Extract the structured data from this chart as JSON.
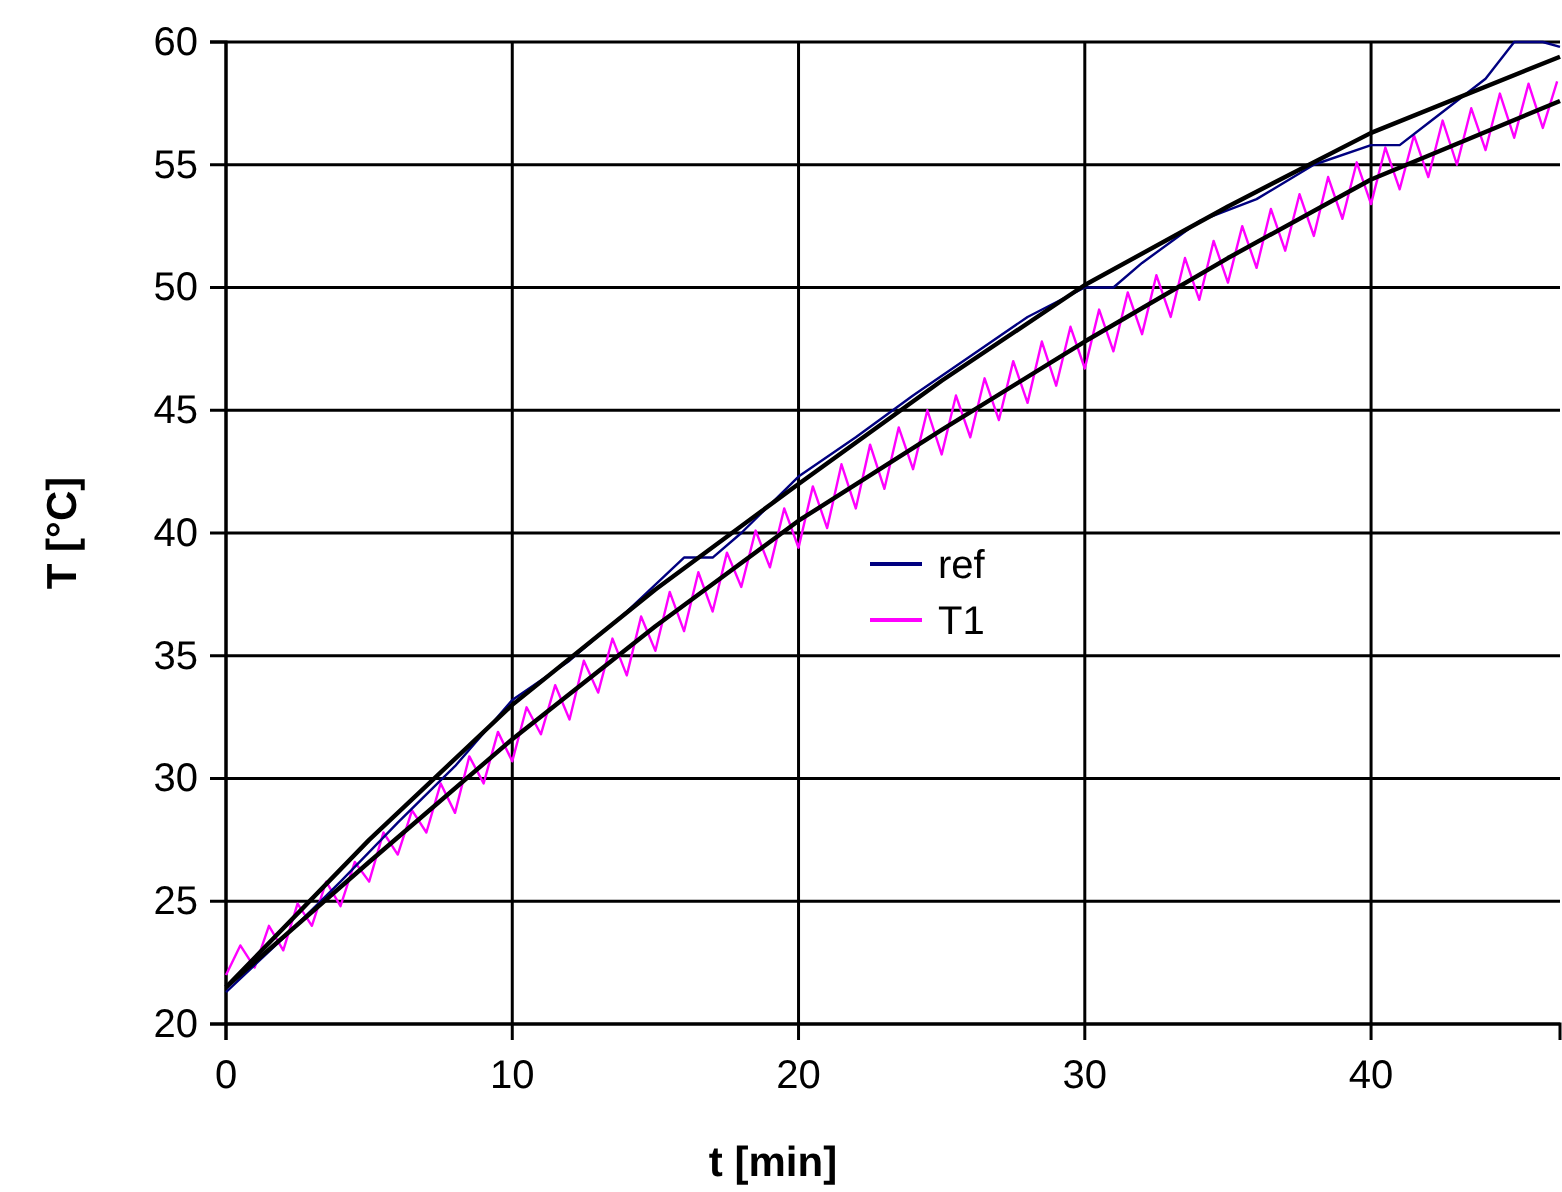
{
  "chart_data": {
    "type": "line",
    "xlabel": "t [min]",
    "ylabel": "T [°C]",
    "xlim": [
      0,
      46.6
    ],
    "ylim": [
      20,
      60
    ],
    "xticks": [
      0,
      10,
      20,
      30,
      40
    ],
    "yticks": [
      20,
      25,
      30,
      35,
      40,
      45,
      50,
      55,
      60
    ],
    "grid": true,
    "legend": "right",
    "marker": "none",
    "line_style": "solid",
    "series": [
      {
        "name": "T1",
        "color": "#ff00ff",
        "x": [
          0,
          0.5,
          1,
          1.5,
          2,
          2.5,
          3,
          3.5,
          4,
          4.5,
          5,
          5.5,
          6,
          6.5,
          7,
          7.5,
          8,
          8.5,
          9,
          9.5,
          10,
          10.5,
          11,
          11.5,
          12,
          12.5,
          13,
          13.5,
          14,
          14.5,
          15,
          15.5,
          16,
          16.5,
          17,
          17.5,
          18,
          18.5,
          19,
          19.5,
          20,
          20.5,
          21,
          21.5,
          22,
          22.5,
          23,
          23.5,
          24,
          24.5,
          25,
          25.5,
          26,
          26.5,
          27,
          27.5,
          28,
          28.5,
          29,
          29.5,
          30,
          30.5,
          31,
          31.5,
          32,
          32.5,
          33,
          33.5,
          34,
          34.5,
          35,
          35.5,
          36,
          36.5,
          37,
          37.5,
          38,
          38.5,
          39,
          39.5,
          40,
          40.5,
          41,
          41.5,
          42,
          42.5,
          43,
          43.5,
          44,
          44.5,
          45,
          45.5,
          46,
          46.5
        ],
        "values": [
          22.0,
          23.2,
          22.3,
          24.0,
          23.0,
          24.9,
          24.0,
          25.8,
          24.8,
          26.6,
          25.8,
          27.8,
          26.9,
          28.7,
          27.8,
          29.8,
          28.6,
          30.9,
          29.8,
          31.9,
          30.7,
          32.9,
          31.8,
          33.8,
          32.4,
          34.8,
          33.5,
          35.7,
          34.2,
          36.6,
          35.2,
          37.6,
          36.0,
          38.4,
          36.8,
          39.2,
          37.8,
          40.1,
          38.6,
          41.0,
          39.4,
          41.9,
          40.2,
          42.8,
          41.0,
          43.6,
          41.8,
          44.3,
          42.6,
          45.0,
          43.2,
          45.6,
          43.9,
          46.3,
          44.6,
          47.0,
          45.3,
          47.8,
          46.0,
          48.4,
          46.7,
          49.1,
          47.4,
          49.8,
          48.1,
          50.5,
          48.8,
          51.2,
          49.5,
          51.9,
          50.2,
          52.5,
          50.8,
          53.2,
          51.5,
          53.8,
          52.1,
          54.5,
          52.8,
          55.1,
          53.4,
          55.7,
          54.0,
          56.2,
          54.5,
          56.8,
          55.0,
          57.3,
          55.6,
          57.9,
          56.1,
          58.3,
          56.5,
          58.4
        ]
      },
      {
        "name": "ref",
        "color": "#000080",
        "x": [
          0,
          2,
          4,
          6,
          8,
          10,
          12,
          14,
          16,
          17,
          18,
          20,
          22,
          24,
          26,
          28,
          30,
          31,
          32,
          34,
          36,
          38,
          40,
          41,
          42,
          44,
          45,
          46,
          46.6
        ],
        "values": [
          21.3,
          23.5,
          25.8,
          28.2,
          30.5,
          33.2,
          34.8,
          36.8,
          39.0,
          39.0,
          40.0,
          42.3,
          43.9,
          45.6,
          47.2,
          48.8,
          50.0,
          50.0,
          51.0,
          52.7,
          53.6,
          55.0,
          55.8,
          55.8,
          56.7,
          58.5,
          60.0,
          60.0,
          59.8
        ]
      },
      {
        "color": "#000000",
        "x": [
          0,
          5,
          10,
          15,
          20,
          25,
          30,
          35,
          40,
          46.6
        ],
        "values": [
          21.5,
          27.5,
          33.0,
          37.7,
          42.0,
          46.2,
          50.1,
          53.3,
          56.3,
          59.4
        ]
      },
      {
        "color": "#000000",
        "x": [
          0,
          5,
          10,
          15,
          20,
          25,
          30,
          35,
          40,
          46.6
        ],
        "values": [
          21.5,
          26.6,
          31.6,
          36.2,
          40.5,
          44.2,
          47.8,
          51.2,
          54.4,
          57.6
        ]
      }
    ]
  }
}
